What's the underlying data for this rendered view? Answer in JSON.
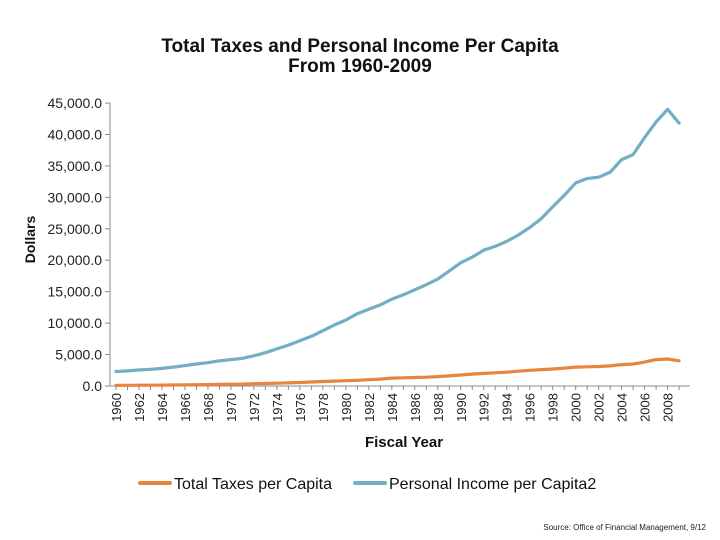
{
  "chart_data": {
    "type": "line",
    "title": "Total Taxes and Personal Income Per Capita",
    "subtitle": "From 1960-2009",
    "xlabel": "Fiscal Year",
    "ylabel": "Dollars",
    "ylim": [
      0,
      45000
    ],
    "yticks": [
      "0.0",
      "5,000.0",
      "10,000.0",
      "15,000.0",
      "20,000.0",
      "25,000.0",
      "30,000.0",
      "35,000.0",
      "40,000.0",
      "45,000.0"
    ],
    "xticks": [
      "1960",
      "1962",
      "1964",
      "1966",
      "1968",
      "1970",
      "1972",
      "1974",
      "1976",
      "1978",
      "1980",
      "1982",
      "1984",
      "1986",
      "1988",
      "1990",
      "1992",
      "1994",
      "1996",
      "1998",
      "2000",
      "2002",
      "2004",
      "2006",
      "2008"
    ],
    "x": [
      1960,
      1961,
      1962,
      1963,
      1964,
      1965,
      1966,
      1967,
      1968,
      1969,
      1970,
      1971,
      1972,
      1973,
      1974,
      1975,
      1976,
      1977,
      1978,
      1979,
      1980,
      1981,
      1982,
      1983,
      1984,
      1985,
      1986,
      1987,
      1988,
      1989,
      1990,
      1991,
      1992,
      1993,
      1994,
      1995,
      1996,
      1997,
      1998,
      1999,
      2000,
      2001,
      2002,
      2003,
      2004,
      2005,
      2006,
      2007,
      2008,
      2009
    ],
    "legend_position": "bottom",
    "grid": false,
    "series": [
      {
        "name": "Total Taxes per Capita",
        "color": "#E8843E",
        "values": [
          100,
          110,
          120,
          130,
          150,
          160,
          180,
          200,
          220,
          250,
          280,
          310,
          360,
          400,
          450,
          500,
          560,
          640,
          720,
          780,
          850,
          900,
          1000,
          1100,
          1250,
          1300,
          1350,
          1400,
          1500,
          1600,
          1750,
          1900,
          2000,
          2100,
          2200,
          2350,
          2500,
          2600,
          2700,
          2850,
          3000,
          3050,
          3100,
          3200,
          3400,
          3500,
          3800,
          4200,
          4300,
          4000
        ]
      },
      {
        "name": "Personal Income per Capita2",
        "color": "#72AEC4",
        "values": [
          2300,
          2400,
          2550,
          2650,
          2800,
          3000,
          3250,
          3500,
          3700,
          4000,
          4200,
          4400,
          4800,
          5300,
          5900,
          6500,
          7200,
          7900,
          8800,
          9700,
          10500,
          11500,
          12200,
          12900,
          13800,
          14500,
          15300,
          16100,
          17000,
          18300,
          19600,
          20500,
          21600,
          22200,
          23000,
          24000,
          25200,
          26600,
          28500,
          30300,
          32300,
          33000,
          33200,
          34000,
          36000,
          36800,
          39500,
          42000,
          44000,
          41800
        ]
      }
    ]
  },
  "footer": {
    "source": "Source: Office of Financial Management, 9/12"
  }
}
